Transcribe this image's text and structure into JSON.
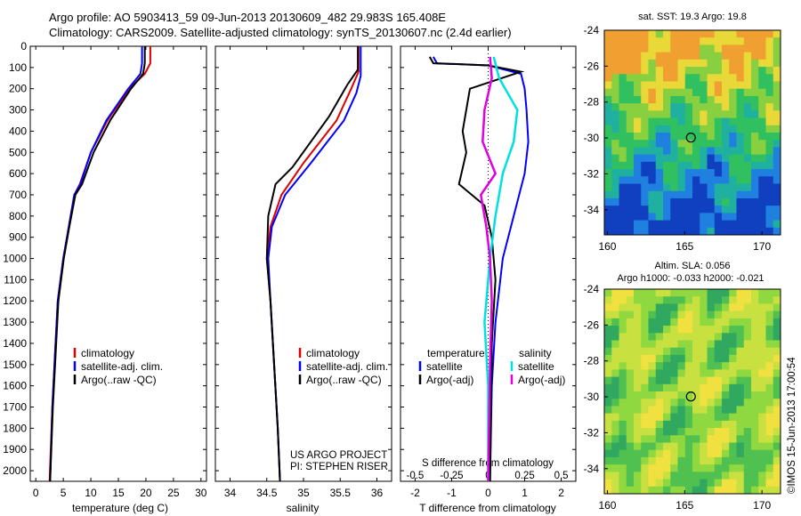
{
  "header": {
    "line1": "Argo profile: AO 5903413_59 09-Jun-2013 20130609_482 29.983S 165.408E",
    "line2": "Climatology: CARS2009. Satellite-adjusted climatology: synTS_20130607.nc (2.4d earlier)"
  },
  "colors": {
    "climatology": "#e00000",
    "satellite": "#0000ff",
    "argo": "#000000",
    "salinity_satellite": "#00e0e0",
    "salinity_argo": "#e000e0"
  },
  "chart_data": [
    {
      "type": "line",
      "id": "temperature",
      "xlabel": "temperature (deg C)",
      "xlim": [
        -1,
        31
      ],
      "xticks": [
        "0",
        "5",
        "10",
        "15",
        "20",
        "25",
        "30"
      ],
      "ylim": [
        0,
        2050
      ],
      "yticks": [
        "0",
        "100",
        "200",
        "300",
        "400",
        "500",
        "600",
        "700",
        "800",
        "900",
        "1000",
        "1100",
        "1200",
        "1300",
        "1400",
        "1500",
        "1600",
        "1700",
        "1800",
        "1900",
        "2000"
      ],
      "legend": [
        "climatology",
        "satellite-adj. clim.",
        "Argo(..raw -QC)"
      ],
      "series": [
        {
          "name": "climatology",
          "color_key": "climatology",
          "points": [
            [
              20.8,
              0
            ],
            [
              20.8,
              80
            ],
            [
              19.8,
              130
            ],
            [
              17,
              200
            ],
            [
              13,
              350
            ],
            [
              10,
              500
            ],
            [
              8,
              650
            ],
            [
              7,
              700
            ],
            [
              6,
              850
            ],
            [
              5,
              1000
            ],
            [
              4,
              1200
            ],
            [
              3.5,
              1450
            ],
            [
              3,
              1700
            ],
            [
              2.5,
              2050
            ]
          ]
        },
        {
          "name": "satellite-adj. clim.",
          "color_key": "satellite",
          "points": [
            [
              19.3,
              0
            ],
            [
              19.3,
              80
            ],
            [
              19,
              130
            ],
            [
              16.8,
              200
            ],
            [
              12.8,
              350
            ],
            [
              10,
              500
            ],
            [
              8.1,
              650
            ],
            [
              7,
              700
            ],
            [
              6,
              850
            ],
            [
              5,
              1000
            ],
            [
              4,
              1200
            ],
            [
              3.5,
              1450
            ],
            [
              3,
              1700
            ],
            [
              2.6,
              2050
            ]
          ]
        },
        {
          "name": "Argo(..raw -QC)",
          "color_key": "argo",
          "points": [
            [
              19.8,
              0
            ],
            [
              19.8,
              80
            ],
            [
              19.5,
              130
            ],
            [
              17.3,
              200
            ],
            [
              13.5,
              350
            ],
            [
              10.5,
              500
            ],
            [
              8.4,
              650
            ],
            [
              7.2,
              700
            ],
            [
              6.1,
              850
            ],
            [
              5.1,
              1000
            ],
            [
              4.1,
              1200
            ],
            [
              3.6,
              1450
            ],
            [
              3.1,
              1700
            ],
            [
              2.6,
              2050
            ]
          ]
        }
      ]
    },
    {
      "type": "line",
      "id": "salinity",
      "xlabel": "salinity",
      "xlim": [
        33.8,
        36.2
      ],
      "xticks": [
        "34",
        "34.5",
        "35",
        "35.5",
        "36"
      ],
      "ylim": [
        0,
        2050
      ],
      "legend": [
        "climatology",
        "satellite-adj. clim.",
        "Argo(..raw -QC)"
      ],
      "annotations": [
        "US ARGO PROJECT",
        "PI: STEPHEN RISER"
      ],
      "series": [
        {
          "name": "climatology",
          "color_key": "climatology",
          "points": [
            [
              35.75,
              0
            ],
            [
              35.75,
              120
            ],
            [
              35.65,
              200
            ],
            [
              35.45,
              350
            ],
            [
              35.0,
              550
            ],
            [
              34.7,
              700
            ],
            [
              34.55,
              850
            ],
            [
              34.5,
              1000
            ],
            [
              34.55,
              1200
            ],
            [
              34.6,
              1500
            ],
            [
              34.65,
              1800
            ],
            [
              34.68,
              2050
            ]
          ]
        },
        {
          "name": "satellite-adj. clim.",
          "color_key": "satellite",
          "points": [
            [
              35.78,
              0
            ],
            [
              35.78,
              140
            ],
            [
              35.72,
              220
            ],
            [
              35.55,
              350
            ],
            [
              35.1,
              550
            ],
            [
              34.75,
              700
            ],
            [
              34.57,
              850
            ],
            [
              34.52,
              1000
            ],
            [
              34.55,
              1200
            ],
            [
              34.6,
              1500
            ],
            [
              34.65,
              1800
            ],
            [
              34.68,
              2050
            ]
          ]
        },
        {
          "name": "Argo(..raw -QC)",
          "color_key": "argo",
          "points": [
            [
              35.74,
              0
            ],
            [
              35.74,
              110
            ],
            [
              35.6,
              180
            ],
            [
              35.35,
              330
            ],
            [
              34.85,
              570
            ],
            [
              34.62,
              650
            ],
            [
              34.52,
              800
            ],
            [
              34.5,
              1000
            ],
            [
              34.55,
              1200
            ],
            [
              34.6,
              1500
            ],
            [
              34.65,
              1800
            ],
            [
              34.68,
              2050
            ]
          ]
        }
      ]
    },
    {
      "type": "line",
      "id": "difference",
      "xlabel": "T difference from climatology",
      "xlabel2": "S difference from climatology",
      "xlim": [
        -2.4,
        2.4
      ],
      "xticks": [
        "-2",
        "-1",
        "0",
        "1",
        "2"
      ],
      "xticks2": [
        "-0.5",
        "-0.25",
        "0",
        "0.25",
        "0.5"
      ],
      "ylim": [
        0,
        2050
      ],
      "legend_headers": [
        "temperature",
        "salinity"
      ],
      "legend": [
        "satellite",
        "Argo(-adj)",
        "satellite",
        "Argo(-adj)"
      ],
      "series": [
        {
          "name": "satellite",
          "color_key": "satellite",
          "points": [
            [
              -1.5,
              50
            ],
            [
              -1.4,
              80
            ],
            [
              0,
              90
            ],
            [
              0.9,
              130
            ],
            [
              1.0,
              200
            ],
            [
              1.05,
              300
            ],
            [
              1.1,
              450
            ],
            [
              1.0,
              600
            ],
            [
              0.7,
              800
            ],
            [
              0.4,
              1000
            ],
            [
              0.2,
              1300
            ],
            [
              0.1,
              1600
            ],
            [
              0.05,
              2050
            ]
          ]
        },
        {
          "name": "Argo(-adj)",
          "color_key": "argo",
          "points": [
            [
              -1.6,
              50
            ],
            [
              -1.5,
              80
            ],
            [
              0,
              90
            ],
            [
              0.9,
              120
            ],
            [
              -0.5,
              200
            ],
            [
              -0.7,
              400
            ],
            [
              -0.6,
              500
            ],
            [
              -0.8,
              650
            ],
            [
              -0.1,
              750
            ],
            [
              0.1,
              900
            ],
            [
              0.2,
              1100
            ],
            [
              0.1,
              1400
            ],
            [
              0.05,
              2050
            ]
          ]
        },
        {
          "name": "salinity satellite",
          "color_key": "salinity_satellite",
          "points": [
            [
              0.15,
              50
            ],
            [
              0.3,
              150
            ],
            [
              0.8,
              300
            ],
            [
              0.7,
              450
            ],
            [
              0.4,
              600
            ],
            [
              0.2,
              800
            ],
            [
              0.05,
              1000
            ],
            [
              -0.1,
              1300
            ],
            [
              0.0,
              1600
            ],
            [
              0.0,
              2050
            ]
          ]
        },
        {
          "name": "salinity Argo(-adj)",
          "color_key": "salinity_argo",
          "points": [
            [
              0.05,
              50
            ],
            [
              0.1,
              150
            ],
            [
              -0.1,
              300
            ],
            [
              -0.15,
              450
            ],
            [
              0.2,
              600
            ],
            [
              -0.2,
              700
            ],
            [
              -0.05,
              850
            ],
            [
              0.05,
              1000
            ],
            [
              0.1,
              1200
            ],
            [
              0.05,
              1500
            ],
            [
              0.0,
              2050
            ]
          ]
        }
      ]
    }
  ],
  "maps": [
    {
      "id": "sst-map",
      "title": "sat. SST: 19.3 Argo: 19.8",
      "yticks": [
        "-24",
        "-26",
        "-28",
        "-30",
        "-32",
        "-34"
      ],
      "xticks": [
        "160",
        "165",
        "170"
      ]
    },
    {
      "id": "sla-map",
      "title": "Altim. SLA: 0.056",
      "title2": "Argo h1000: -0.033 h2000: -0.021",
      "yticks": [
        "-24",
        "-26",
        "-28",
        "-30",
        "-32",
        "-34"
      ],
      "xticks": [
        "160",
        "165",
        "170"
      ]
    }
  ],
  "footer": {
    "credit": "©IMOS 15-Jun-2013 17:00:54"
  }
}
